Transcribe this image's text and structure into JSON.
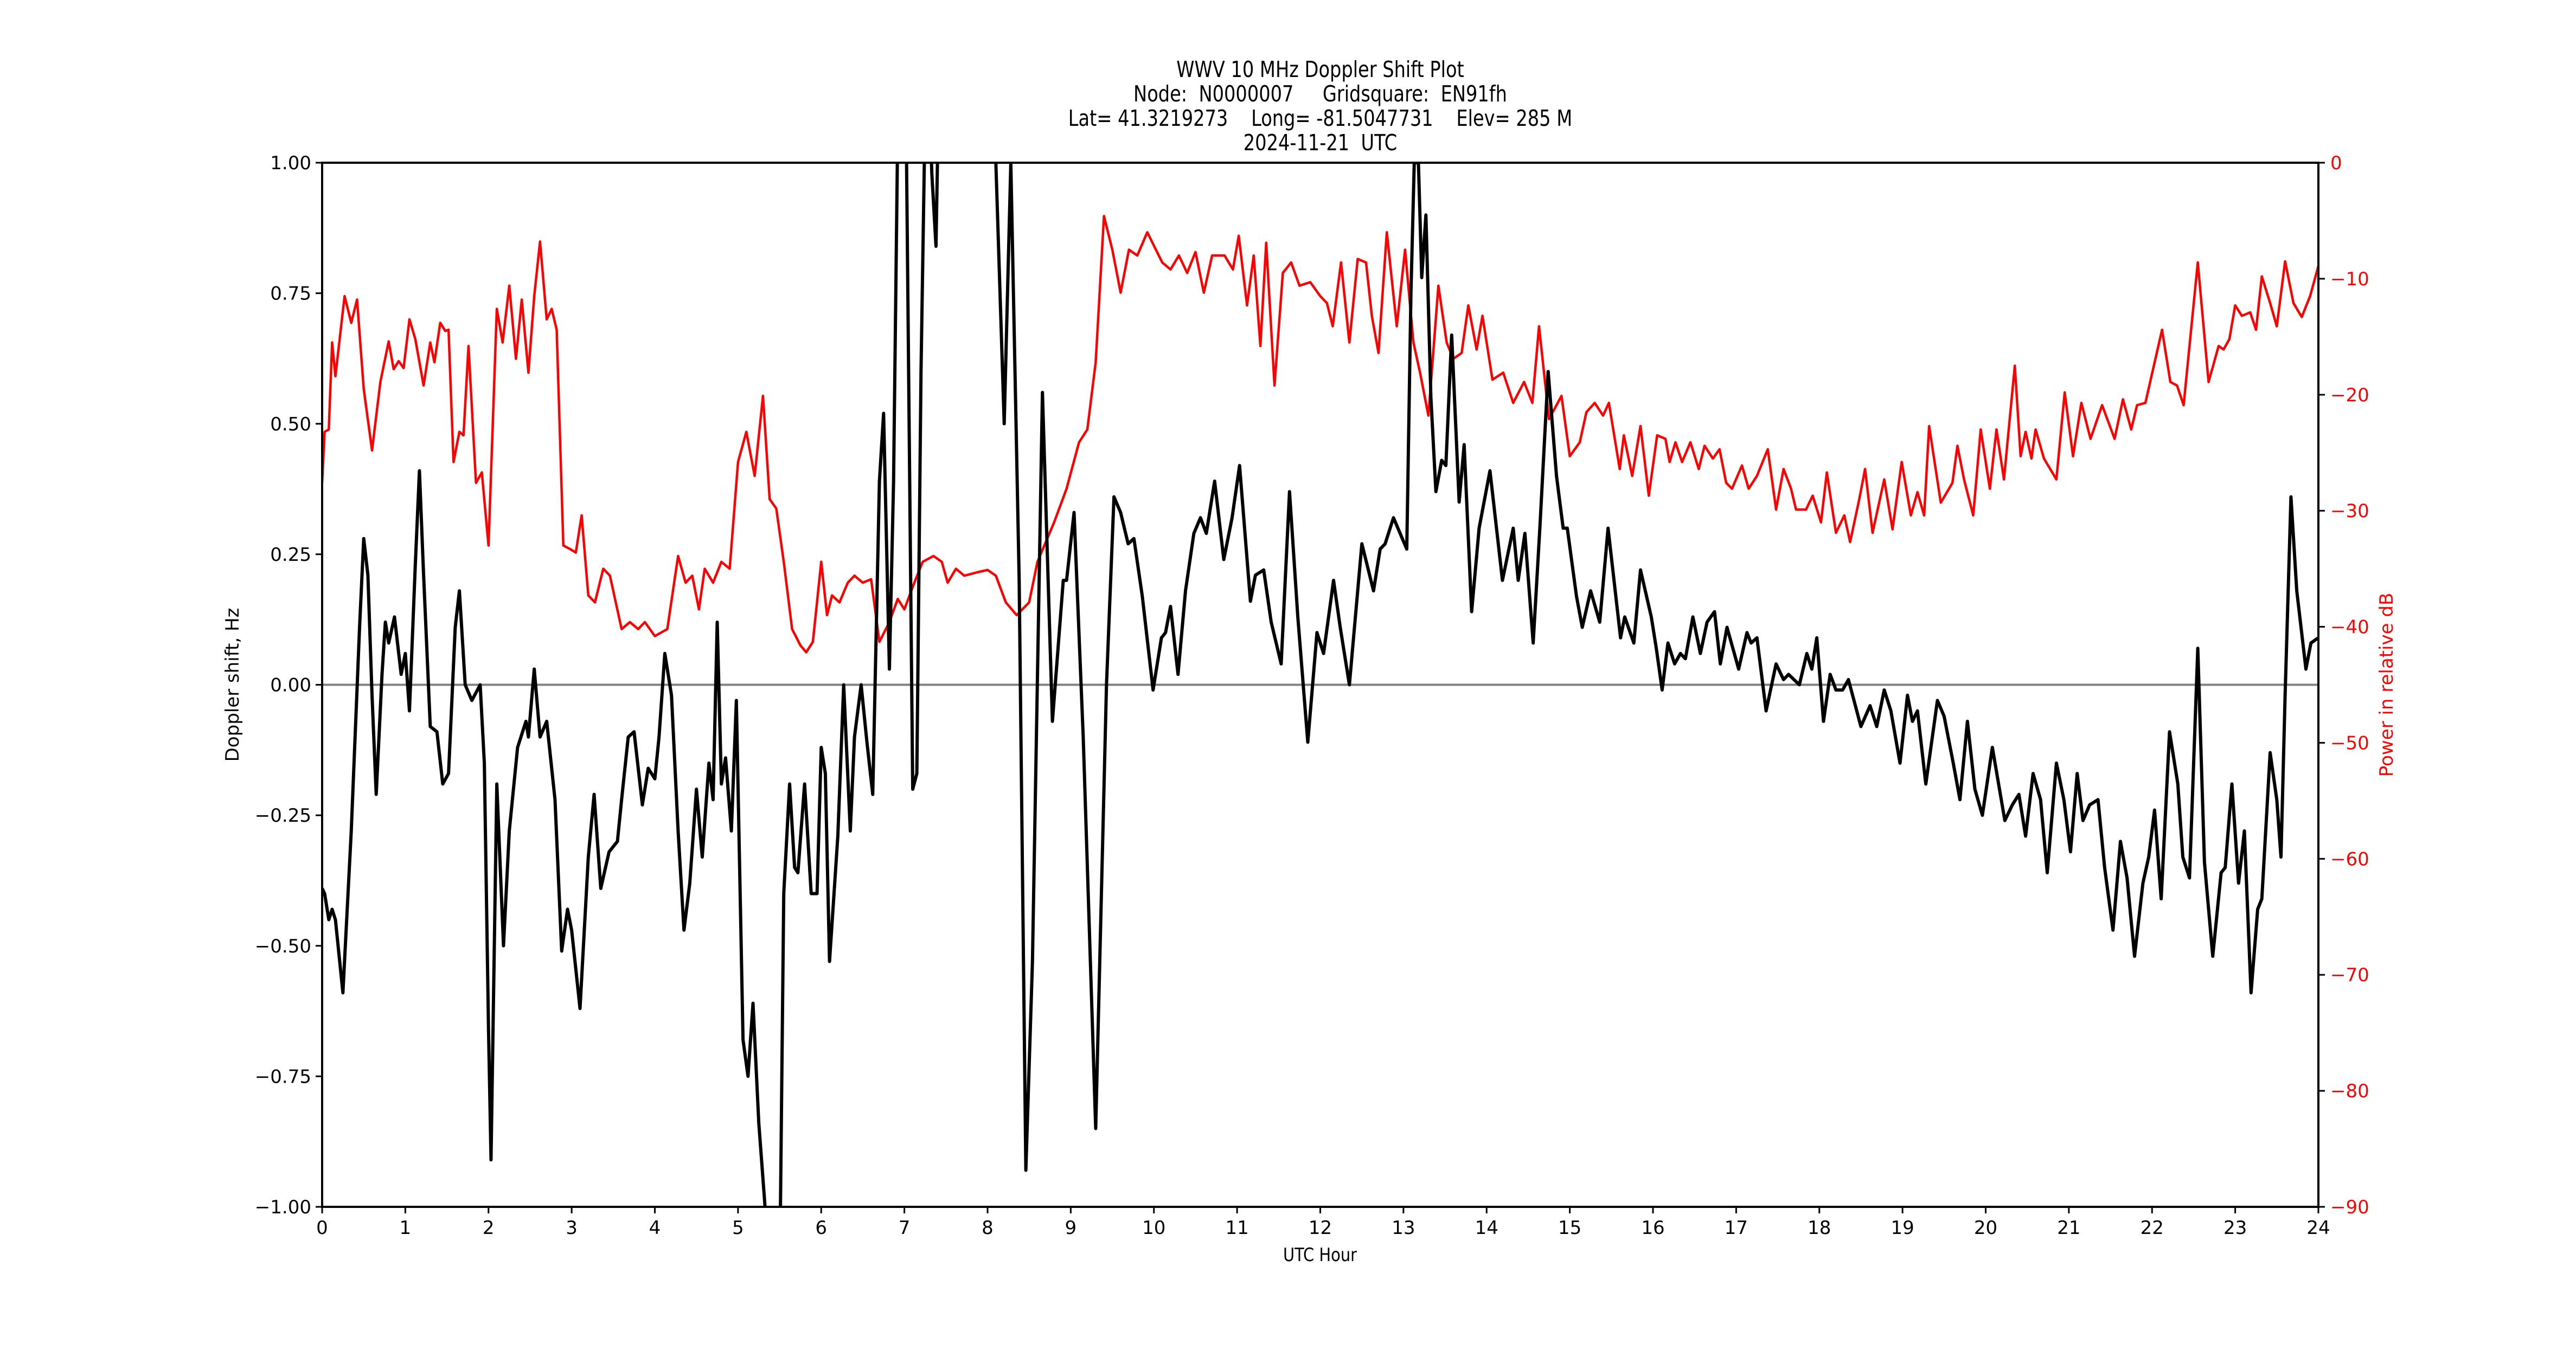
{
  "chart_data": {
    "type": "line",
    "title": "WWV 10 MHz Doppler Shift Plot",
    "subtitle_lines": [
      "Node:  N0000007     Gridsquare:  EN91fh",
      "Lat= 41.3219273    Long= -81.5047731    Elev= 285 M",
      "2024-11-21  UTC"
    ],
    "xlabel": "UTC Hour",
    "ylabel": "Doppler shift, Hz",
    "y2label": "Power in relative dB",
    "xlim": [
      0,
      24
    ],
    "ylim": [
      -1.0,
      1.0
    ],
    "y2lim": [
      -90,
      0
    ],
    "x_ticks": [
      0,
      1,
      2,
      3,
      4,
      5,
      6,
      7,
      8,
      9,
      10,
      11,
      12,
      13,
      14,
      15,
      16,
      17,
      18,
      19,
      20,
      21,
      22,
      23,
      24
    ],
    "y_ticks": [
      1.0,
      0.75,
      0.5,
      0.25,
      0.0,
      -0.25,
      -0.5,
      -0.75,
      -1.0
    ],
    "y_tick_labels": [
      "1.00",
      "0.75",
      "0.50",
      "0.25",
      "0.00",
      "−0.25",
      "−0.50",
      "−0.75",
      "−1.00"
    ],
    "y2_ticks": [
      0,
      -10,
      -20,
      -30,
      -40,
      -50,
      -60,
      -70,
      -80,
      -90
    ],
    "y2_tick_labels": [
      "0",
      "−10",
      "−20",
      "−30",
      "−40",
      "−50",
      "−60",
      "−70",
      "−80",
      "−90"
    ],
    "grid": false,
    "reference_line": {
      "y": 0.0,
      "color": "#808080"
    },
    "series": [
      {
        "name": "Doppler shift",
        "axis": "left",
        "color": "#000000",
        "x": [
          0,
          0.03,
          0.08,
          0.12,
          0.16,
          0.25,
          0.35,
          0.45,
          0.5,
          0.55,
          0.6,
          0.65,
          0.72,
          0.76,
          0.8,
          0.87,
          0.95,
          1.0,
          1.05,
          1.12,
          1.17,
          1.22,
          1.3,
          1.38,
          1.45,
          1.52,
          1.6,
          1.65,
          1.72,
          1.8,
          1.9,
          1.95,
          2.0,
          2.03,
          2.1,
          2.18,
          2.25,
          2.35,
          2.45,
          2.48,
          2.55,
          2.62,
          2.7,
          2.8,
          2.88,
          2.95,
          3.0,
          3.1,
          3.2,
          3.27,
          3.35,
          3.45,
          3.55,
          3.6,
          3.68,
          3.75,
          3.85,
          3.92,
          4.0,
          4.05,
          4.12,
          4.2,
          4.28,
          4.35,
          4.42,
          4.5,
          4.57,
          4.65,
          4.7,
          4.75,
          4.8,
          4.85,
          4.92,
          4.98,
          5.06,
          5.12,
          5.18,
          5.25,
          5.32,
          5.4,
          5.5,
          5.55,
          5.62,
          5.68,
          5.72,
          5.8,
          5.88,
          5.95,
          6.0,
          6.05,
          6.1,
          6.2,
          6.27,
          6.35,
          6.4,
          6.48,
          6.55,
          6.62,
          6.7,
          6.75,
          6.82,
          6.87,
          6.93,
          6.97,
          7.02,
          7.1,
          7.15,
          7.2,
          7.27,
          7.33,
          7.38,
          7.42,
          7.5,
          7.65,
          7.8,
          7.95,
          8.1,
          8.2,
          8.28,
          8.38,
          8.46,
          8.54,
          8.66,
          8.78,
          8.91,
          8.95,
          9.04,
          9.15,
          9.3,
          9.43,
          9.52,
          9.6,
          9.69,
          9.76,
          9.86,
          9.99,
          10.09,
          10.14,
          10.2,
          10.29,
          10.38,
          10.48,
          10.56,
          10.63,
          10.73,
          10.84,
          10.94,
          11.03,
          11.16,
          11.22,
          11.32,
          11.41,
          11.53,
          11.63,
          11.73,
          11.85,
          11.96,
          12.04,
          12.16,
          12.24,
          12.35,
          12.5,
          12.64,
          12.72,
          12.78,
          12.88,
          13.04,
          13.09,
          13.13,
          13.18,
          13.22,
          13.27,
          13.33,
          13.39,
          13.46,
          13.51,
          13.58,
          13.67,
          13.73,
          13.82,
          13.91,
          14.04,
          14.19,
          14.32,
          14.38,
          14.46,
          14.56,
          14.64,
          14.74,
          14.84,
          14.92,
          14.97,
          15.08,
          15.15,
          15.25,
          15.36,
          15.46,
          15.61,
          15.66,
          15.77,
          15.85,
          15.98,
          16.04,
          16.11,
          16.18,
          16.26,
          16.33,
          16.39,
          16.48,
          16.57,
          16.65,
          16.74,
          16.81,
          16.89,
          17.03,
          17.13,
          17.18,
          17.25,
          17.36,
          17.48,
          17.57,
          17.63,
          17.76,
          17.85,
          17.91,
          17.97,
          18.05,
          18.13,
          18.2,
          18.28,
          18.35,
          18.5,
          18.61,
          18.69,
          18.78,
          18.86,
          18.97,
          19.06,
          19.12,
          19.18,
          19.28,
          19.42,
          19.5,
          19.61,
          19.69,
          19.78,
          19.87,
          19.96,
          20.08,
          20.23,
          20.32,
          20.4,
          20.48,
          20.57,
          20.66,
          20.74,
          20.85,
          20.94,
          21.02,
          21.1,
          21.17,
          21.25,
          21.35,
          21.43,
          21.53,
          21.62,
          21.7,
          21.79,
          21.89,
          21.96,
          22.03,
          22.11,
          22.21,
          22.31,
          22.37,
          22.45,
          22.55,
          22.63,
          22.73,
          22.83,
          22.88,
          22.96,
          23.04,
          23.11,
          23.19,
          23.27,
          23.32,
          23.42,
          23.5,
          23.55,
          23.6,
          23.67,
          23.74,
          23.85,
          23.91,
          24.0
        ],
        "values": [
          -0.39,
          -0.4,
          -0.45,
          -0.43,
          -0.45,
          -0.59,
          -0.28,
          0.11,
          0.28,
          0.21,
          -0.02,
          -0.21,
          0.02,
          0.12,
          0.08,
          0.13,
          0.02,
          0.06,
          -0.05,
          0.23,
          0.41,
          0.21,
          -0.08,
          -0.09,
          -0.19,
          -0.17,
          0.11,
          0.18,
          0.0,
          -0.03,
          0.0,
          -0.15,
          -0.66,
          -0.91,
          -0.19,
          -0.5,
          -0.28,
          -0.12,
          -0.07,
          -0.1,
          0.03,
          -0.1,
          -0.07,
          -0.22,
          -0.51,
          -0.43,
          -0.47,
          -0.62,
          -0.33,
          -0.21,
          -0.39,
          -0.32,
          -0.3,
          -0.22,
          -0.1,
          -0.09,
          -0.23,
          -0.16,
          -0.18,
          -0.1,
          0.06,
          -0.02,
          -0.28,
          -0.47,
          -0.38,
          -0.2,
          -0.33,
          -0.15,
          -0.22,
          0.12,
          -0.19,
          -0.14,
          -0.28,
          -0.03,
          -0.68,
          -0.75,
          -0.61,
          -0.84,
          -0.99,
          -1.2,
          -1.15,
          -0.4,
          -0.19,
          -0.35,
          -0.36,
          -0.19,
          -0.4,
          -0.4,
          -0.12,
          -0.17,
          -0.53,
          -0.29,
          0.0,
          -0.28,
          -0.1,
          0.0,
          -0.11,
          -0.21,
          0.39,
          0.52,
          0.03,
          0.39,
          1.2,
          1.3,
          1.1,
          -0.2,
          -0.17,
          0.6,
          1.3,
          0.98,
          0.84,
          1.2,
          1.5,
          1.6,
          1.5,
          1.3,
          1.0,
          0.5,
          1.0,
          0.2,
          -0.93,
          -0.53,
          0.56,
          -0.07,
          0.2,
          0.2,
          0.33,
          -0.1,
          -0.85,
          0.0,
          0.36,
          0.33,
          0.27,
          0.28,
          0.17,
          -0.01,
          0.09,
          0.1,
          0.15,
          0.02,
          0.18,
          0.29,
          0.32,
          0.29,
          0.39,
          0.24,
          0.32,
          0.42,
          0.16,
          0.21,
          0.22,
          0.12,
          0.04,
          0.37,
          0.13,
          -0.11,
          0.1,
          0.06,
          0.2,
          0.11,
          0.0,
          0.27,
          0.18,
          0.26,
          0.27,
          0.32,
          0.26,
          0.75,
          1.0,
          1.0,
          0.78,
          0.9,
          0.55,
          0.37,
          0.43,
          0.42,
          0.67,
          0.35,
          0.46,
          0.14,
          0.3,
          0.41,
          0.2,
          0.3,
          0.2,
          0.29,
          0.08,
          0.3,
          0.6,
          0.4,
          0.3,
          0.3,
          0.17,
          0.11,
          0.18,
          0.12,
          0.3,
          0.09,
          0.13,
          0.08,
          0.22,
          0.13,
          0.07,
          -0.01,
          0.08,
          0.04,
          0.06,
          0.05,
          0.13,
          0.06,
          0.12,
          0.14,
          0.04,
          0.11,
          0.03,
          0.1,
          0.08,
          0.09,
          -0.05,
          0.04,
          0.01,
          0.02,
          0.0,
          0.06,
          0.03,
          0.09,
          -0.07,
          0.02,
          -0.01,
          -0.01,
          0.01,
          -0.08,
          -0.04,
          -0.08,
          -0.01,
          -0.05,
          -0.15,
          -0.02,
          -0.07,
          -0.05,
          -0.19,
          -0.03,
          -0.06,
          -0.15,
          -0.22,
          -0.07,
          -0.2,
          -0.25,
          -0.12,
          -0.26,
          -0.23,
          -0.21,
          -0.29,
          -0.17,
          -0.22,
          -0.36,
          -0.15,
          -0.22,
          -0.32,
          -0.17,
          -0.26,
          -0.23,
          -0.22,
          -0.35,
          -0.47,
          -0.3,
          -0.37,
          -0.52,
          -0.38,
          -0.33,
          -0.24,
          -0.41,
          -0.09,
          -0.19,
          -0.33,
          -0.37,
          0.07,
          -0.34,
          -0.52,
          -0.36,
          -0.35,
          -0.19,
          -0.38,
          -0.28,
          -0.59,
          -0.43,
          -0.41,
          -0.13,
          -0.22,
          -0.33,
          -0.02,
          0.36,
          0.18,
          0.03,
          0.08,
          0.09
        ]
      },
      {
        "name": "Power",
        "axis": "right",
        "color": "#ff0000",
        "x": [
          0,
          0.03,
          0.08,
          0.12,
          0.16,
          0.27,
          0.35,
          0.42,
          0.5,
          0.6,
          0.7,
          0.8,
          0.86,
          0.92,
          0.98,
          1.05,
          1.12,
          1.22,
          1.3,
          1.35,
          1.42,
          1.48,
          1.52,
          1.58,
          1.65,
          1.7,
          1.76,
          1.85,
          1.92,
          2.0,
          2.1,
          2.17,
          2.25,
          2.33,
          2.4,
          2.48,
          2.55,
          2.62,
          2.7,
          2.76,
          2.82,
          2.9,
          2.98,
          3.05,
          3.12,
          3.2,
          3.28,
          3.38,
          3.46,
          3.6,
          3.7,
          3.8,
          3.88,
          4.0,
          4.15,
          4.28,
          4.37,
          4.45,
          4.53,
          4.6,
          4.7,
          4.8,
          4.9,
          5.0,
          5.1,
          5.2,
          5.3,
          5.38,
          5.46,
          5.55,
          5.65,
          5.75,
          5.82,
          5.9,
          6.0,
          6.07,
          6.13,
          6.22,
          6.32,
          6.4,
          6.5,
          6.6,
          6.7,
          6.82,
          6.92,
          7.0,
          7.12,
          7.22,
          7.35,
          7.45,
          7.52,
          7.62,
          7.72,
          7.88,
          8.0,
          8.1,
          8.22,
          8.35,
          8.5,
          8.6,
          8.7,
          8.8,
          8.95,
          9.1,
          9.2,
          9.3,
          9.4,
          9.5,
          9.6,
          9.7,
          9.8,
          9.92,
          10.1,
          10.2,
          10.3,
          10.4,
          10.5,
          10.6,
          10.7,
          10.85,
          10.95,
          11.02,
          11.12,
          11.2,
          11.28,
          11.35,
          11.45,
          11.55,
          11.65,
          11.75,
          11.88,
          12.0,
          12.08,
          12.15,
          12.25,
          12.35,
          12.45,
          12.55,
          12.62,
          12.7,
          12.8,
          12.92,
          13.02,
          13.12,
          13.2,
          13.3,
          13.42,
          13.52,
          13.6,
          13.7,
          13.78,
          13.88,
          13.95,
          14.07,
          14.2,
          14.32,
          14.45,
          14.55,
          14.63,
          14.75,
          14.9,
          15.0,
          15.12,
          15.2,
          15.3,
          15.4,
          15.47,
          15.6,
          15.65,
          15.75,
          15.85,
          15.95,
          16.05,
          16.15,
          16.2,
          16.27,
          16.35,
          16.45,
          16.55,
          16.62,
          16.72,
          16.8,
          16.88,
          16.95,
          17.07,
          17.15,
          17.25,
          17.38,
          17.48,
          17.57,
          17.66,
          17.72,
          17.84,
          17.92,
          18.02,
          18.09,
          18.2,
          18.3,
          18.37,
          18.48,
          18.55,
          18.64,
          18.78,
          18.88,
          18.99,
          19.1,
          19.18,
          19.26,
          19.32,
          19.46,
          19.6,
          19.66,
          19.74,
          19.85,
          19.94,
          20.05,
          20.13,
          20.22,
          20.35,
          20.42,
          20.48,
          20.55,
          20.6,
          20.7,
          20.85,
          20.95,
          21.05,
          21.15,
          21.26,
          21.4,
          21.55,
          21.65,
          21.75,
          21.82,
          21.92,
          22.12,
          22.22,
          22.3,
          22.38,
          22.55,
          22.68,
          22.8,
          22.86,
          22.93,
          23.0,
          23.08,
          23.18,
          23.25,
          23.32,
          23.42,
          23.5,
          23.6,
          23.7,
          23.8,
          23.9,
          24.0
        ],
        "values": [
          -27.6,
          -23.2,
          -23.0,
          -15.5,
          -18.4,
          -11.5,
          -13.8,
          -11.8,
          -19.5,
          -24.8,
          -18.9,
          -15.4,
          -17.8,
          -17.1,
          -17.7,
          -13.5,
          -15.2,
          -19.2,
          -15.5,
          -17.2,
          -13.8,
          -14.5,
          -14.4,
          -25.8,
          -23.2,
          -23.5,
          -15.8,
          -27.6,
          -26.7,
          -33.0,
          -12.6,
          -15.5,
          -10.6,
          -16.9,
          -11.8,
          -18.1,
          -11.5,
          -6.8,
          -13.5,
          -12.6,
          -14.4,
          -33.0,
          -33.3,
          -33.6,
          -30.4,
          -37.3,
          -37.9,
          -35.0,
          -35.6,
          -40.2,
          -39.6,
          -40.2,
          -39.6,
          -40.8,
          -40.2,
          -33.9,
          -36.2,
          -35.6,
          -38.5,
          -35.0,
          -36.2,
          -34.4,
          -35.0,
          -25.8,
          -23.2,
          -27.0,
          -20.1,
          -29.0,
          -29.8,
          -34.4,
          -40.2,
          -41.6,
          -42.2,
          -41.3,
          -34.4,
          -39.0,
          -37.3,
          -37.9,
          -36.2,
          -35.6,
          -36.2,
          -35.9,
          -41.3,
          -39.6,
          -37.6,
          -38.5,
          -36.2,
          -34.4,
          -33.9,
          -34.4,
          -36.2,
          -35.0,
          -35.6,
          -35.3,
          -35.1,
          -35.6,
          -37.9,
          -39.0,
          -37.9,
          -34.4,
          -32.7,
          -31.0,
          -28.1,
          -24.1,
          -23.0,
          -17.2,
          -4.6,
          -7.5,
          -11.2,
          -7.5,
          -8.0,
          -6.0,
          -8.6,
          -9.2,
          -8.0,
          -9.5,
          -7.7,
          -11.2,
          -8.0,
          -8.0,
          -9.2,
          -6.3,
          -12.3,
          -8.0,
          -15.8,
          -6.9,
          -19.2,
          -9.5,
          -8.6,
          -10.6,
          -10.3,
          -11.5,
          -12.1,
          -14.1,
          -8.6,
          -15.5,
          -8.3,
          -8.6,
          -13.2,
          -16.4,
          -6.0,
          -14.1,
          -7.5,
          -15.5,
          -18.1,
          -21.8,
          -10.6,
          -15.5,
          -16.9,
          -16.4,
          -12.3,
          -16.1,
          -13.2,
          -18.7,
          -18.1,
          -20.7,
          -18.9,
          -20.7,
          -14.1,
          -22.1,
          -20.1,
          -25.3,
          -24.1,
          -21.5,
          -20.7,
          -21.8,
          -20.7,
          -26.4,
          -23.5,
          -27.0,
          -22.7,
          -28.7,
          -23.5,
          -23.8,
          -25.8,
          -24.1,
          -25.8,
          -24.1,
          -26.4,
          -24.4,
          -25.5,
          -24.7,
          -27.6,
          -28.1,
          -26.1,
          -28.1,
          -27.0,
          -24.7,
          -29.9,
          -26.4,
          -28.1,
          -29.9,
          -29.9,
          -28.7,
          -31.0,
          -26.7,
          -31.9,
          -30.4,
          -32.7,
          -29.0,
          -26.4,
          -31.9,
          -27.3,
          -31.6,
          -25.8,
          -30.4,
          -28.4,
          -30.4,
          -22.7,
          -29.3,
          -27.6,
          -24.4,
          -27.3,
          -30.4,
          -23.0,
          -28.1,
          -23.0,
          -27.3,
          -17.5,
          -25.3,
          -23.2,
          -25.5,
          -23.0,
          -25.5,
          -27.3,
          -19.8,
          -25.3,
          -20.7,
          -23.8,
          -20.9,
          -23.8,
          -20.4,
          -23.0,
          -20.9,
          -20.7,
          -14.4,
          -18.9,
          -19.2,
          -20.9,
          -8.6,
          -18.9,
          -15.8,
          -16.1,
          -15.2,
          -12.3,
          -13.2,
          -12.9,
          -14.4,
          -9.8,
          -12.1,
          -14.1,
          -8.5,
          -12.1,
          -13.3,
          -11.5,
          -8.9
        ]
      }
    ]
  }
}
